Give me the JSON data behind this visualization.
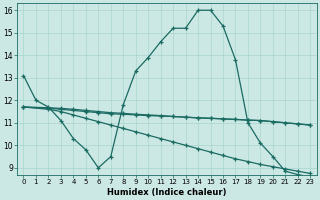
{
  "xlabel": "Humidex (Indice chaleur)",
  "bg_color": "#cce8e5",
  "line_color": "#1a6b62",
  "grid_color": "#aad4ce",
  "xlim": [
    -0.5,
    23.5
  ],
  "ylim": [
    8.7,
    16.3
  ],
  "xticks": [
    0,
    1,
    2,
    3,
    4,
    5,
    6,
    7,
    8,
    9,
    10,
    11,
    12,
    13,
    14,
    15,
    16,
    17,
    18,
    19,
    20,
    21,
    22,
    23
  ],
  "yticks": [
    9,
    10,
    11,
    12,
    13,
    14,
    15,
    16
  ],
  "series": [
    {
      "x": [
        0,
        1,
        2,
        3,
        4,
        5,
        6,
        7,
        8,
        9,
        10,
        11,
        12,
        13,
        14,
        15,
        16,
        17,
        18,
        19,
        20,
        21,
        22,
        23
      ],
      "y": [
        13.1,
        12.0,
        11.7,
        11.1,
        10.3,
        9.8,
        9.0,
        9.5,
        11.8,
        13.3,
        13.9,
        14.6,
        15.2,
        15.2,
        16.0,
        16.0,
        15.3,
        13.8,
        11.0,
        10.1,
        9.5,
        8.85,
        8.7,
        8.6
      ]
    },
    {
      "x": [
        0,
        2,
        3,
        4,
        5,
        6,
        7,
        8,
        9,
        10,
        11,
        12,
        13,
        14,
        15,
        16,
        17,
        18,
        19,
        20,
        21,
        22,
        23
      ],
      "y": [
        11.7,
        11.65,
        11.6,
        11.55,
        11.5,
        11.45,
        11.4,
        11.38,
        11.35,
        11.32,
        11.3,
        11.28,
        11.25,
        11.22,
        11.2,
        11.18,
        11.15,
        11.12,
        11.1,
        11.05,
        11.0,
        10.95,
        10.9
      ]
    },
    {
      "x": [
        0,
        2,
        3,
        4,
        5,
        6,
        7,
        8,
        9,
        10,
        11,
        12,
        13,
        14,
        15,
        16,
        17,
        18,
        19,
        20,
        21,
        22,
        23
      ],
      "y": [
        11.7,
        11.6,
        11.5,
        11.35,
        11.2,
        11.05,
        10.9,
        10.75,
        10.6,
        10.45,
        10.3,
        10.15,
        10.0,
        9.85,
        9.7,
        9.55,
        9.4,
        9.28,
        9.15,
        9.05,
        8.95,
        8.85,
        8.75
      ]
    },
    {
      "x": [
        0,
        2,
        3,
        4,
        5,
        6,
        7,
        8,
        9,
        10,
        11,
        12,
        13,
        14,
        15,
        16,
        17,
        18,
        19,
        20,
        21,
        22,
        23
      ],
      "y": [
        11.7,
        11.67,
        11.64,
        11.6,
        11.55,
        11.5,
        11.45,
        11.42,
        11.38,
        11.35,
        11.32,
        11.28,
        11.25,
        11.22,
        11.2,
        11.17,
        11.15,
        11.12,
        11.1,
        11.05,
        11.0,
        10.95,
        10.9
      ]
    }
  ]
}
